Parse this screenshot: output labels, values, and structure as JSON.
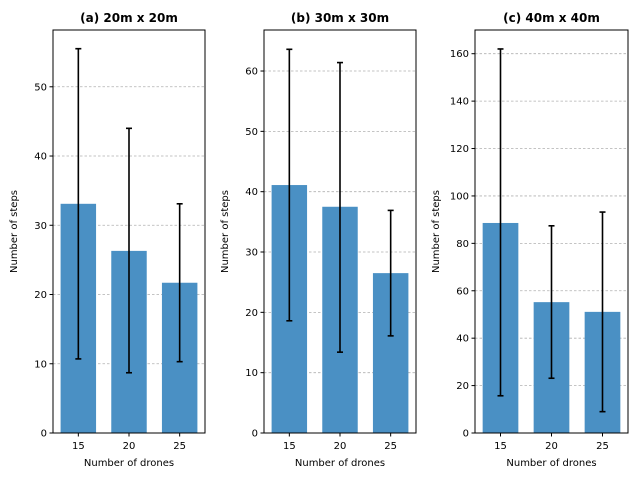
{
  "colors": {
    "bar": "#4a90c4",
    "error": "#000000",
    "grid": "#b0b0b0"
  },
  "chart_data": [
    {
      "type": "bar",
      "title": "(a) 20m x 20m",
      "xlabel": "Number of drones",
      "ylabel": "Number of steps",
      "categories": [
        "15",
        "20",
        "25"
      ],
      "values": [
        33.1,
        26.3,
        21.7
      ],
      "error_low": [
        10.7,
        8.7,
        10.3
      ],
      "error_high": [
        55.5,
        44.0,
        33.1
      ],
      "ylim": [
        0,
        58.2
      ],
      "yticks": [
        0,
        10,
        20,
        30,
        40,
        50
      ],
      "grid": true
    },
    {
      "type": "bar",
      "title": "(b) 30m x 30m",
      "xlabel": "Number of drones",
      "ylabel": "Number of steps",
      "categories": [
        "15",
        "20",
        "25"
      ],
      "values": [
        41.1,
        37.5,
        26.5
      ],
      "error_low": [
        18.6,
        13.4,
        16.1
      ],
      "error_high": [
        63.6,
        61.4,
        36.9
      ],
      "ylim": [
        0,
        66.8
      ],
      "yticks": [
        0,
        10,
        20,
        30,
        40,
        50,
        60
      ],
      "grid": true
    },
    {
      "type": "bar",
      "title": "(c) 40m x 40m",
      "xlabel": "Number of drones",
      "ylabel": "Number of steps",
      "categories": [
        "15",
        "20",
        "25"
      ],
      "values": [
        88.6,
        55.2,
        51.1
      ],
      "error_low": [
        15.7,
        23.1,
        9.0
      ],
      "error_high": [
        162.0,
        87.4,
        93.2
      ],
      "ylim": [
        0,
        170
      ],
      "yticks": [
        0,
        20,
        40,
        60,
        80,
        100,
        120,
        140,
        160
      ],
      "grid": true
    }
  ]
}
